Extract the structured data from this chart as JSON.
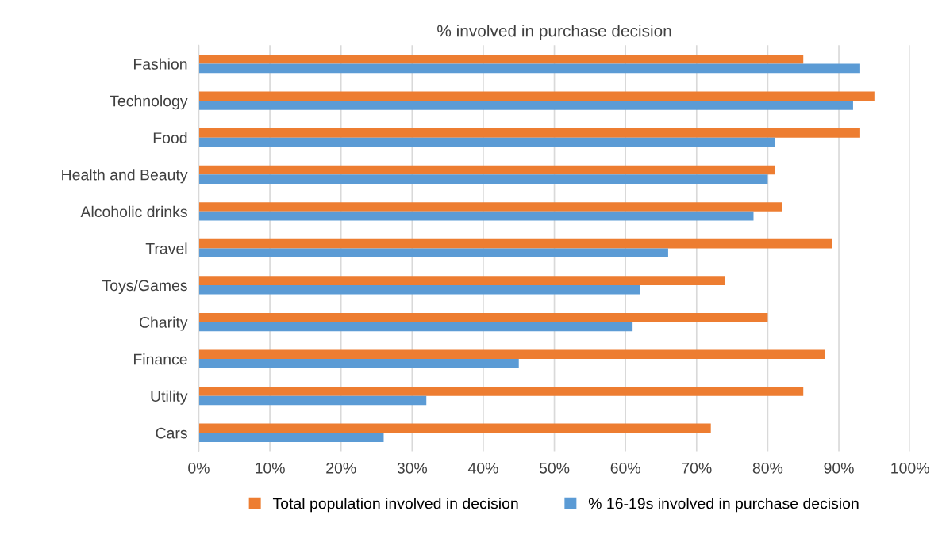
{
  "chart_data": {
    "type": "bar",
    "orientation": "horizontal",
    "title": "% involved in purchase decision",
    "categories": [
      "Fashion",
      "Technology",
      "Food",
      "Health and Beauty",
      "Alcoholic drinks",
      "Travel",
      "Toys/Games",
      "Charity",
      "Finance",
      "Utility",
      "Cars"
    ],
    "series": [
      {
        "name": "Total population involved in decision",
        "color": "#ed7d31",
        "values": [
          85,
          95,
          93,
          81,
          82,
          89,
          74,
          80,
          88,
          85,
          72
        ]
      },
      {
        "name": "% 16-19s involved in purchase decision",
        "color": "#5b9bd5",
        "values": [
          93,
          92,
          81,
          80,
          78,
          66,
          62,
          61,
          45,
          32,
          26
        ]
      }
    ],
    "xlim": [
      0,
      100
    ],
    "xticks": [
      {
        "value": 0,
        "label": "0%"
      },
      {
        "value": 10,
        "label": "10%"
      },
      {
        "value": 20,
        "label": "20%"
      },
      {
        "value": 30,
        "label": "30%"
      },
      {
        "value": 40,
        "label": "40%"
      },
      {
        "value": 50,
        "label": "50%"
      },
      {
        "value": 60,
        "label": "60%"
      },
      {
        "value": 70,
        "label": "70%"
      },
      {
        "value": 80,
        "label": "80%"
      },
      {
        "value": 90,
        "label": "90%"
      },
      {
        "value": 100,
        "label": "100%"
      }
    ],
    "grid": "x",
    "legend": "bottom"
  }
}
